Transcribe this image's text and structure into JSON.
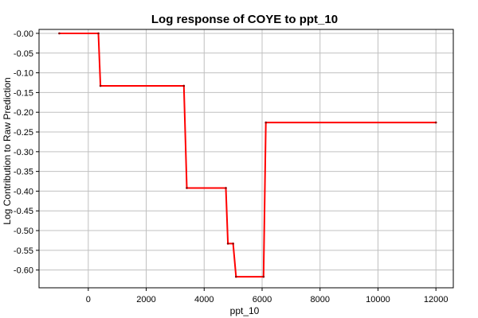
{
  "chart_data": {
    "type": "line",
    "title": "Log response of COYE to ppt_10",
    "xlabel": "ppt_10",
    "ylabel": "Log Contribution to Raw Prediction",
    "xlim": [
      -1700,
      12600
    ],
    "ylim": [
      -0.645,
      0.01
    ],
    "xticks": [
      0,
      2000,
      4000,
      6000,
      8000,
      10000,
      12000
    ],
    "xtick_labels": [
      "0",
      "2000",
      "4000",
      "6000",
      "8000",
      "10000",
      "12000"
    ],
    "yticks": [
      -0.0,
      -0.05,
      -0.1,
      -0.15,
      -0.2,
      -0.25,
      -0.3,
      -0.35,
      -0.4,
      -0.45,
      -0.5,
      -0.55,
      -0.6
    ],
    "ytick_labels": [
      "-0.00",
      "-0.05",
      "-0.10",
      "-0.15",
      "-0.20",
      "-0.25",
      "-0.30",
      "-0.35",
      "-0.40",
      "-0.45",
      "-0.50",
      "-0.55",
      "-0.60"
    ],
    "grid": true,
    "series": [
      {
        "color": "#ff0000",
        "x": [
          -1000,
          350,
          420,
          3300,
          3400,
          4750,
          4820,
          5000,
          5100,
          6050,
          6130,
          12000
        ],
        "y": [
          0.0,
          0.0,
          -0.133,
          -0.133,
          -0.392,
          -0.392,
          -0.533,
          -0.533,
          -0.617,
          -0.617,
          -0.226,
          -0.226
        ]
      }
    ]
  }
}
